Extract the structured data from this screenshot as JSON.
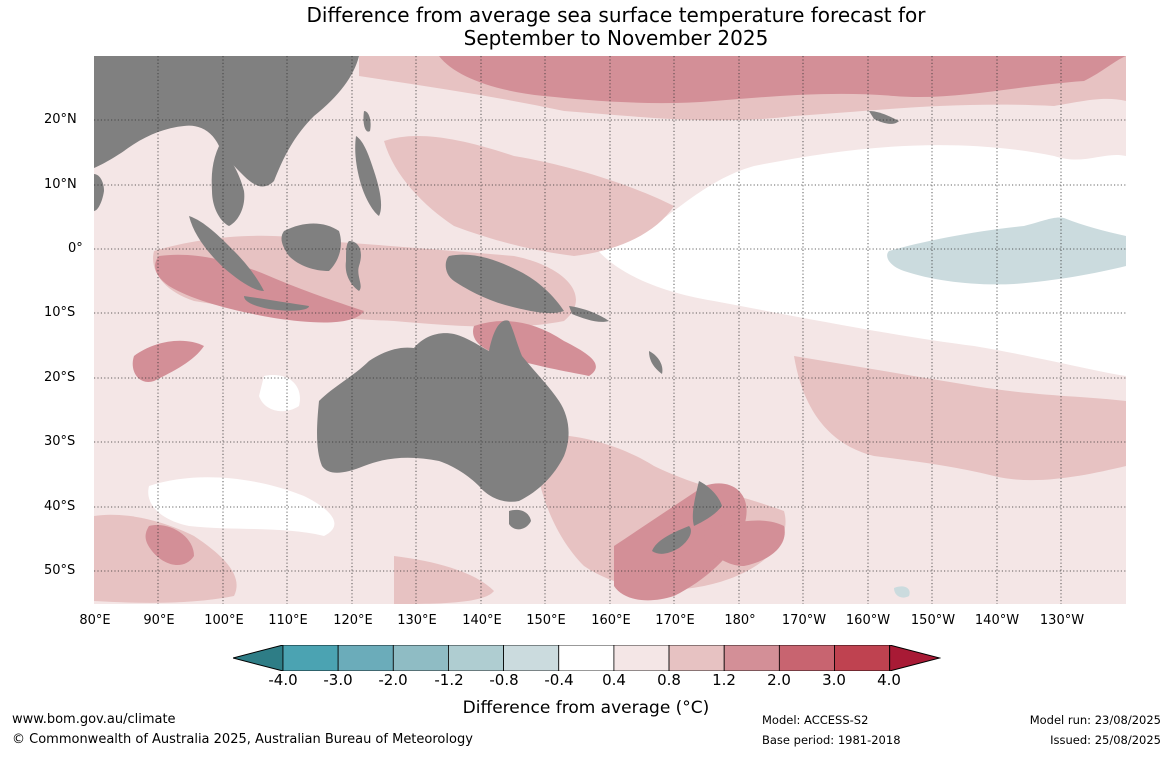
{
  "title": {
    "line1": "Difference from average sea surface temperature forecast for",
    "line2": "September to November 2025"
  },
  "map": {
    "lat_labels": [
      "20°N",
      "10°N",
      "0°",
      "10°S",
      "20°S",
      "30°S",
      "40°S",
      "50°S"
    ],
    "lon_labels": [
      "80°E",
      "90°E",
      "100°E",
      "110°E",
      "120°E",
      "130°E",
      "140°E",
      "150°E",
      "160°E",
      "170°E",
      "180°",
      "170°W",
      "160°W",
      "150°W",
      "140°W",
      "130°W"
    ],
    "land_color": "#808080",
    "grid": "dotted"
  },
  "colorbar": {
    "ticks": [
      "-4.0",
      "-3.0",
      "-2.0",
      "-1.2",
      "-0.8",
      "-0.4",
      "0.4",
      "0.8",
      "1.2",
      "2.0",
      "3.0",
      "4.0"
    ],
    "colors": [
      "#2e7d86",
      "#4ba3b2",
      "#6bacba",
      "#8fbcc4",
      "#afcdd1",
      "#cbdbde",
      "#ffffff",
      "#f4e6e6",
      "#e7c2c2",
      "#d38f97",
      "#c86470",
      "#bf4250",
      "#a81a35"
    ],
    "label": "Difference from average (°C)"
  },
  "footer": {
    "url": "www.bom.gov.au/climate",
    "copyright": "© Commonwealth of Australia 2025, Australian Bureau of Meteorology",
    "model": "Model: ACCESS-S2",
    "base_period": "Base period: 1981-2018",
    "model_run": "Model run: 23/08/2025",
    "issued": "Issued: 25/08/2025"
  }
}
